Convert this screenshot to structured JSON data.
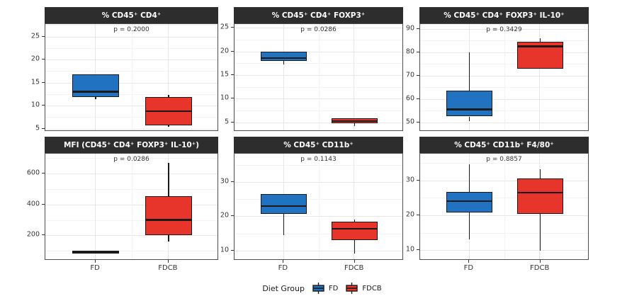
{
  "chart_data": {
    "type": "bar",
    "chart_kind": "faceted-boxplots",
    "x_categories": [
      "FD",
      "FDCB"
    ],
    "colors": {
      "FD": "#2173c2",
      "FDCB": "#e8352c"
    },
    "legend": {
      "title": "Diet Group",
      "entries": [
        {
          "label": "FD",
          "color": "#2173c2"
        },
        {
          "label": "FDCB",
          "color": "#e8352c"
        }
      ]
    },
    "panels": [
      {
        "title": "% CD45⁺ CD4⁺",
        "p_label": "p = 0.2000",
        "ylim": [
          4.3,
          27.7
        ],
        "yticks": [
          5,
          10,
          15,
          20,
          25
        ],
        "boxes": [
          {
            "group": "FD",
            "color": "#2173c2",
            "lo": 11.3,
            "q1": 11.8,
            "median": 13.0,
            "q3": 16.8,
            "hi": 16.8
          },
          {
            "group": "FDCB",
            "color": "#e8352c",
            "lo": 5.3,
            "q1": 5.7,
            "median": 8.8,
            "q3": 11.8,
            "hi": 12.3
          }
        ]
      },
      {
        "title": "% CD45⁺ CD4⁺ FOXP3⁺",
        "p_label": "p = 0.0286",
        "ylim": [
          3.0,
          25.8
        ],
        "yticks": [
          5,
          10,
          15,
          20,
          25
        ],
        "boxes": [
          {
            "group": "FD",
            "color": "#2173c2",
            "lo": 17.3,
            "q1": 18.0,
            "median": 18.6,
            "q3": 19.9,
            "hi": 19.9
          },
          {
            "group": "FDCB",
            "color": "#e8352c",
            "lo": 4.2,
            "q1": 4.8,
            "median": 5.3,
            "q3": 5.8,
            "hi": 5.8
          }
        ]
      },
      {
        "title": "% CD45⁺ CD4⁺ FOXP3⁺ IL-10⁺",
        "p_label": "p = 0.3429",
        "ylim": [
          46,
          92
        ],
        "yticks": [
          50,
          60,
          70,
          80,
          90
        ],
        "boxes": [
          {
            "group": "FD",
            "color": "#2173c2",
            "lo": 50.5,
            "q1": 52.5,
            "median": 55.5,
            "q3": 63.5,
            "hi": 80.0
          },
          {
            "group": "FDCB",
            "color": "#e8352c",
            "lo": 73.0,
            "q1": 73.0,
            "median": 82.5,
            "q3": 84.5,
            "hi": 86.0
          }
        ]
      },
      {
        "title": "MFI (CD45⁺ CD4⁺ FOXP3⁺ IL-10⁺)",
        "p_label": "p = 0.0286",
        "ylim": [
          37,
          729
        ],
        "yticks": [
          200,
          400,
          600
        ],
        "boxes": [
          {
            "group": "FD",
            "color": "#2173c2",
            "lo": 82,
            "q1": 82,
            "median": 90,
            "q3": 100,
            "hi": 100
          },
          {
            "group": "FDCB",
            "color": "#e8352c",
            "lo": 160,
            "q1": 200,
            "median": 300,
            "q3": 455,
            "hi": 670
          }
        ]
      },
      {
        "title": "% CD45⁺ CD11b⁺",
        "p_label": "p = 0.1143",
        "ylim": [
          7.1,
          38.2
        ],
        "yticks": [
          10,
          20,
          30
        ],
        "boxes": [
          {
            "group": "FD",
            "color": "#2173c2",
            "lo": 14.5,
            "q1": 20.7,
            "median": 23.0,
            "q3": 26.5,
            "hi": 26.5
          },
          {
            "group": "FDCB",
            "color": "#e8352c",
            "lo": 9.2,
            "q1": 13.0,
            "median": 16.3,
            "q3": 18.4,
            "hi": 19.0
          }
        ]
      },
      {
        "title": "% CD45⁺ CD11b⁺ F4/80⁺",
        "p_label": "p = 0.8857",
        "ylim": [
          7.0,
          37.6
        ],
        "yticks": [
          10,
          20,
          30
        ],
        "boxes": [
          {
            "group": "FD",
            "color": "#2173c2",
            "lo": 13.0,
            "q1": 20.8,
            "median": 24.0,
            "q3": 26.7,
            "hi": 34.5
          },
          {
            "group": "FDCB",
            "color": "#e8352c",
            "lo": 9.8,
            "q1": 20.3,
            "median": 26.5,
            "q3": 30.5,
            "hi": 33.2
          }
        ]
      }
    ]
  }
}
